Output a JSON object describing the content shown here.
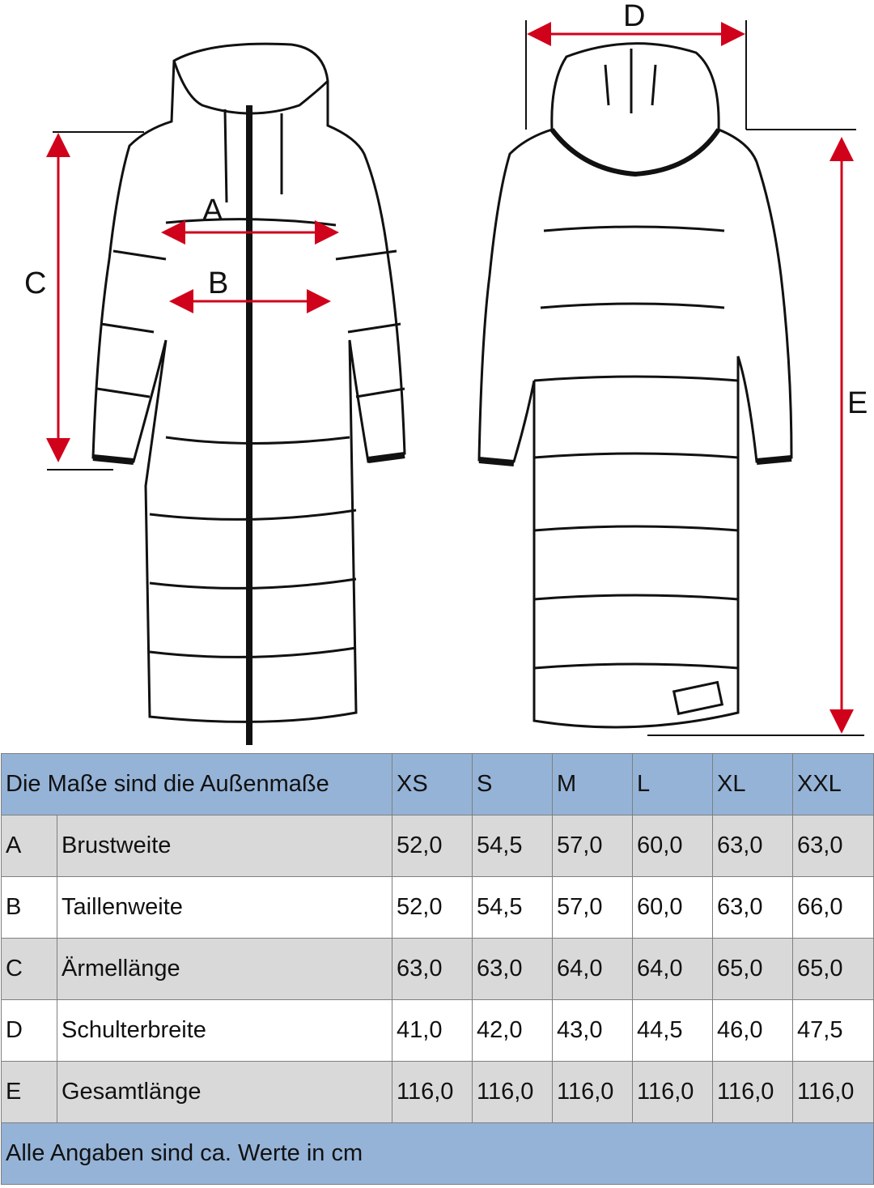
{
  "diagram": {
    "labels": {
      "A": "A",
      "B": "B",
      "C": "C",
      "D": "D",
      "E": "E"
    },
    "arrow_color": "#d0021b"
  },
  "table": {
    "header": {
      "title": "Die Maße sind die Außenmaße",
      "sizes": [
        "XS",
        "S",
        "M",
        "L",
        "XL",
        "XXL"
      ]
    },
    "rows": [
      {
        "key": "A",
        "name": "Brustweite",
        "values": [
          "52,0",
          "54,5",
          "57,0",
          "60,0",
          "63,0",
          "63,0"
        ]
      },
      {
        "key": "B",
        "name": "Taillenweite",
        "values": [
          "52,0",
          "54,5",
          "57,0",
          "60,0",
          "63,0",
          "66,0"
        ]
      },
      {
        "key": "C",
        "name": "Ärmellänge",
        "values": [
          "63,0",
          "63,0",
          "64,0",
          "64,0",
          "65,0",
          "65,0"
        ]
      },
      {
        "key": "D",
        "name": "Schulterbreite",
        "values": [
          "41,0",
          "42,0",
          "43,0",
          "44,5",
          "46,0",
          "47,5"
        ]
      },
      {
        "key": "E",
        "name": "Gesamtlänge",
        "values": [
          "116,0",
          "116,0",
          "116,0",
          "116,0",
          "116,0",
          "116,0"
        ]
      }
    ],
    "footer": "Alle Angaben sind ca. Werte in cm",
    "header_color": "#95b3d7",
    "stripe_color": "#d9d9d9"
  }
}
